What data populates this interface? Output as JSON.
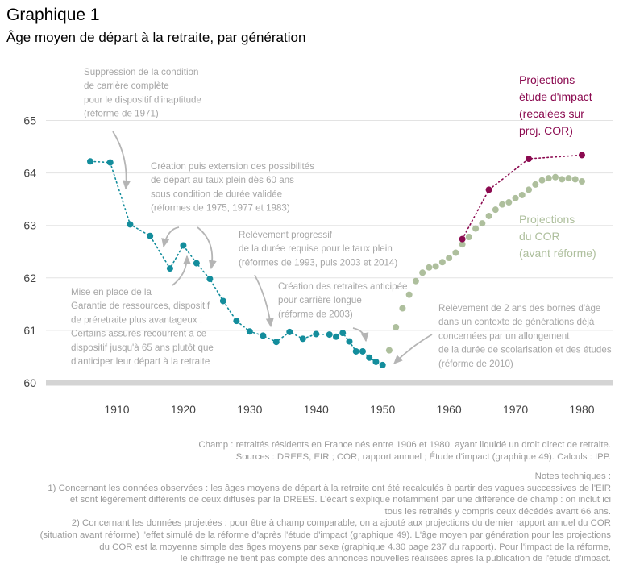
{
  "header": {
    "title": "Graphique 1",
    "subtitle": "Âge moyen de départ à la retraite, par génération"
  },
  "colors": {
    "observed": "#138d9c",
    "cor": "#aebf9d",
    "impact": "#8b0a50",
    "annotation": "#a6a6a6",
    "grid": "#e3e3e3",
    "baseline": "#d4d4d4"
  },
  "chart_data": {
    "type": "scatter",
    "title": "Âge moyen de départ à la retraite, par génération",
    "xlabel": "",
    "ylabel": "",
    "xlim": [
      1903,
      1985
    ],
    "ylim": [
      60,
      65.4
    ],
    "x_ticks": [
      1910,
      1920,
      1930,
      1940,
      1950,
      1960,
      1970,
      1980
    ],
    "y_ticks": [
      60,
      61,
      62,
      63,
      64,
      65
    ],
    "grid": true,
    "series": [
      {
        "name": "",
        "style": "observed",
        "x": [
          1906,
          1909,
          1912,
          1915,
          1918,
          1920,
          1922,
          1924,
          1926,
          1928,
          1930,
          1932,
          1934,
          1936,
          1938,
          1940,
          1942,
          1943,
          1944,
          1945,
          1946,
          1947,
          1948,
          1949,
          1950
        ],
        "y": [
          64.22,
          64.2,
          63.02,
          62.8,
          62.18,
          62.62,
          62.28,
          61.98,
          61.56,
          61.18,
          60.98,
          60.9,
          60.78,
          60.97,
          60.84,
          60.93,
          60.92,
          60.88,
          60.95,
          60.79,
          60.6,
          60.6,
          60.48,
          60.4,
          60.34
        ]
      },
      {
        "name": "Projections du COR (avant réforme)",
        "style": "cor",
        "x": [
          1951,
          1952,
          1953,
          1954,
          1955,
          1956,
          1957,
          1958,
          1959,
          1960,
          1961,
          1962,
          1963,
          1964,
          1965,
          1966,
          1967,
          1968,
          1969,
          1970,
          1971,
          1972,
          1973,
          1974,
          1975,
          1976,
          1977,
          1978,
          1979,
          1980
        ],
        "y": [
          60.62,
          61.06,
          61.42,
          61.68,
          61.94,
          62.1,
          62.2,
          62.22,
          62.3,
          62.38,
          62.48,
          62.64,
          62.78,
          62.94,
          63.04,
          63.18,
          63.3,
          63.4,
          63.44,
          63.52,
          63.58,
          63.68,
          63.78,
          63.86,
          63.9,
          63.92,
          63.88,
          63.9,
          63.88,
          63.84
        ]
      },
      {
        "name": "Projections étude d'impact (recalées sur proj. COR)",
        "style": "impact",
        "x": [
          1962,
          1966,
          1972,
          1980
        ],
        "y": [
          62.74,
          63.68,
          64.27,
          64.34
        ]
      }
    ],
    "legend_labels": [
      {
        "style": "impact",
        "lines": [
          "Projections",
          "étude d'impact",
          "(recalées sur",
          "proj. COR)"
        ]
      },
      {
        "style": "cor",
        "lines": [
          "Projections",
          "du COR",
          "(avant réforme)"
        ]
      }
    ],
    "annotations": [
      {
        "lines": [
          "Suppression de la condition",
          "de carrière complète",
          "pour le dispositif d'inaptitude",
          "(réforme de 1971)"
        ]
      },
      {
        "lines": [
          "Création puis extension des possibilités",
          "de départ au taux plein dès 60 ans",
          "sous condition de durée validée",
          "(réformes de 1975, 1977 et 1983)"
        ]
      },
      {
        "lines": [
          "Mise en place de la",
          "Garantie de ressources, dispositif",
          "de préretraite plus avantageux :",
          "Certains assurés recourrent à ce",
          "dispositif jusqu'à 65 ans plutôt que",
          "d'anticiper leur départ à la retraite"
        ]
      },
      {
        "lines": [
          "Relèvement progressif",
          "de la durée requise pour le taux plein",
          "(réformes de 1993, puis 2003 et 2014)"
        ]
      },
      {
        "lines": [
          "Création des retraites anticipée",
          "pour carrière longue",
          "(réforme de 2003)"
        ]
      },
      {
        "lines": [
          "Relèvement de 2 ans des bornes d'âge",
          "dans un contexte de générations déjà",
          "concernées par un allongement",
          "de la durée de scolarisation et des études",
          "(réforme de 2010)"
        ]
      }
    ]
  },
  "notes": {
    "source_lines": [
      "Champ : retraités résidents en France nés entre 1906 et 1980, ayant liquidé un droit direct de retraite.",
      "Sources : DREES, EIR ; COR, rapport annuel ; Étude d'impact (graphique 49). Calculs : IPP."
    ],
    "technical_lines": [
      "Notes techniques :",
      "1) Concernant les données observées : les âges moyens de départ à la retraite ont été recalculés à partir des vagues successives de l'EIR",
      "et sont légèrement différents de ceux diffusés par la DREES. L'écart s'explique notamment par une différence de champ : on inclut ici",
      "tous les retraités y compris ceux décédés avant 66 ans.",
      "2) Concernant les données projetées : pour être à champ comparable, on a ajouté aux projections du dernier rapport annuel du COR",
      "(situation avant réforme) l'effet simulé de la réforme d'après l'étude d'impact (graphique 49). L'âge moyen par génération pour les projections",
      "du COR est la moyenne simple des âges moyens par sexe (graphique 4.30 page 237 du rapport). Pour l'impact de la réforme,",
      "le chiffrage ne tient pas compte des annonces nouvelles réalisées après la publication de l'étude d'impact."
    ]
  }
}
